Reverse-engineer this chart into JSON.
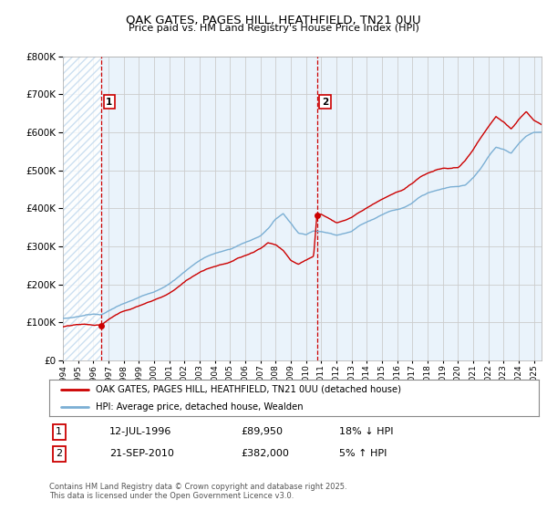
{
  "title": "OAK GATES, PAGES HILL, HEATHFIELD, TN21 0UU",
  "subtitle": "Price paid vs. HM Land Registry's House Price Index (HPI)",
  "legend_line1": "OAK GATES, PAGES HILL, HEATHFIELD, TN21 0UU (detached house)",
  "legend_line2": "HPI: Average price, detached house, Wealden",
  "annotation1_date": "12-JUL-1996",
  "annotation1_price": "£89,950",
  "annotation1_hpi": "18% ↓ HPI",
  "annotation2_date": "21-SEP-2010",
  "annotation2_price": "£382,000",
  "annotation2_hpi": "5% ↑ HPI",
  "footnote": "Contains HM Land Registry data © Crown copyright and database right 2025.\nThis data is licensed under the Open Government Licence v3.0.",
  "price_color": "#cc0000",
  "hpi_color": "#7bafd4",
  "hpi_fill_color": "#d6e8f5",
  "vline_color": "#cc0000",
  "grid_color": "#cccccc",
  "background_color": "#ffffff",
  "plot_bg_color": "#eaf3fb",
  "hatch_color": "#c0d8ee",
  "ylim": [
    0,
    800000
  ],
  "xlim": [
    1994.0,
    2025.5
  ],
  "marker1_x": 1996.53,
  "marker1_y": 89950,
  "marker2_x": 2010.72,
  "marker2_y": 382000,
  "hpi_keypoints_x": [
    1994.0,
    1994.5,
    1995.0,
    1995.5,
    1996.0,
    1996.5,
    1997.0,
    1997.5,
    1998.0,
    1998.5,
    1999.0,
    1999.5,
    2000.0,
    2000.5,
    2001.0,
    2001.5,
    2002.0,
    2002.5,
    2003.0,
    2003.5,
    2004.0,
    2004.5,
    2005.0,
    2005.5,
    2006.0,
    2006.5,
    2007.0,
    2007.5,
    2008.0,
    2008.5,
    2009.0,
    2009.5,
    2010.0,
    2010.5,
    2011.0,
    2011.5,
    2012.0,
    2012.5,
    2013.0,
    2013.5,
    2014.0,
    2014.5,
    2015.0,
    2015.5,
    2016.0,
    2016.5,
    2017.0,
    2017.5,
    2018.0,
    2018.5,
    2019.0,
    2019.5,
    2020.0,
    2020.5,
    2021.0,
    2021.5,
    2022.0,
    2022.5,
    2023.0,
    2023.5,
    2024.0,
    2024.5,
    2025.0,
    2025.5
  ],
  "hpi_keypoints_y": [
    110000,
    112000,
    115000,
    120000,
    122000,
    120000,
    130000,
    140000,
    148000,
    155000,
    163000,
    172000,
    180000,
    188000,
    200000,
    215000,
    232000,
    248000,
    262000,
    272000,
    280000,
    285000,
    290000,
    300000,
    308000,
    316000,
    325000,
    345000,
    370000,
    385000,
    360000,
    335000,
    330000,
    340000,
    340000,
    335000,
    330000,
    335000,
    340000,
    355000,
    365000,
    375000,
    385000,
    395000,
    400000,
    405000,
    415000,
    430000,
    440000,
    445000,
    450000,
    455000,
    455000,
    460000,
    480000,
    505000,
    535000,
    560000,
    555000,
    545000,
    570000,
    590000,
    600000,
    600000
  ],
  "price_keypoints_x": [
    1994.0,
    1994.5,
    1995.0,
    1995.5,
    1996.0,
    1996.53,
    1997.0,
    1997.5,
    1998.0,
    1998.5,
    1999.0,
    1999.5,
    2000.0,
    2000.5,
    2001.0,
    2001.5,
    2002.0,
    2002.5,
    2003.0,
    2003.5,
    2004.0,
    2004.5,
    2005.0,
    2005.5,
    2006.0,
    2006.5,
    2007.0,
    2007.5,
    2008.0,
    2008.5,
    2009.0,
    2009.5,
    2010.0,
    2010.5,
    2010.72,
    2011.0,
    2011.5,
    2012.0,
    2012.5,
    2013.0,
    2013.5,
    2014.0,
    2014.5,
    2015.0,
    2015.5,
    2016.0,
    2016.5,
    2017.0,
    2017.5,
    2018.0,
    2018.5,
    2019.0,
    2019.5,
    2020.0,
    2020.5,
    2021.0,
    2021.5,
    2022.0,
    2022.5,
    2023.0,
    2023.5,
    2024.0,
    2024.5,
    2025.0,
    2025.5
  ],
  "price_keypoints_y": [
    88000,
    90000,
    92000,
    93000,
    90000,
    89950,
    105000,
    118000,
    128000,
    135000,
    143000,
    152000,
    160000,
    168000,
    178000,
    192000,
    208000,
    222000,
    235000,
    245000,
    252000,
    257000,
    262000,
    272000,
    278000,
    285000,
    295000,
    310000,
    305000,
    290000,
    265000,
    255000,
    265000,
    275000,
    382000,
    385000,
    375000,
    365000,
    370000,
    378000,
    392000,
    405000,
    418000,
    430000,
    440000,
    450000,
    458000,
    472000,
    488000,
    498000,
    505000,
    510000,
    510000,
    510000,
    530000,
    558000,
    588000,
    618000,
    645000,
    630000,
    610000,
    635000,
    655000,
    630000,
    620000
  ]
}
